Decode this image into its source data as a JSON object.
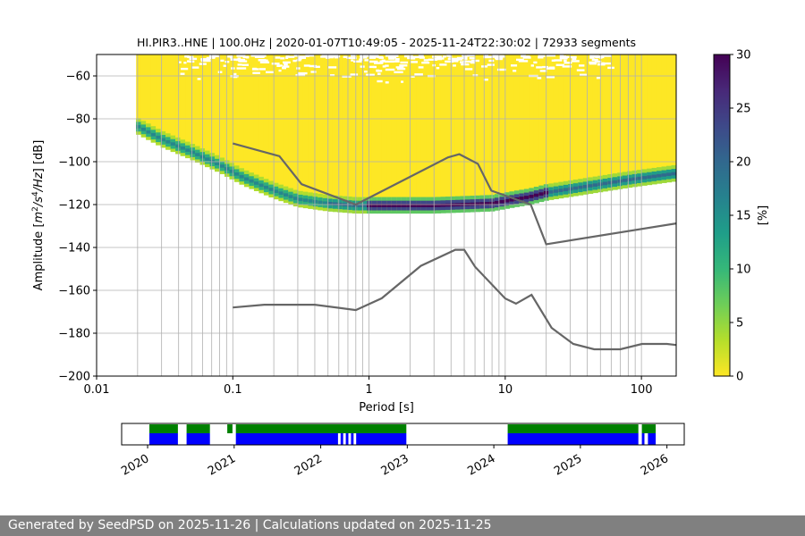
{
  "chart_data": [
    {
      "type": "heatmap",
      "title": "HI.PIR3..HNE | 100.0Hz | 2020-01-07T10:49:05 - 2025-11-24T22:30:02 | 72933 segments",
      "xlabel": "Period [s]",
      "ylabel_parts": [
        "Amplitude [",
        "m",
        "2",
        "/s",
        "4",
        "/Hz",
        "] [dB]"
      ],
      "x_scale": "log",
      "xlim": [
        0.01,
        180
      ],
      "ylim": [
        -200,
        -50
      ],
      "x_ticks": [
        0.01,
        0.1,
        1,
        10,
        100
      ],
      "x_tick_labels": [
        "0.01",
        "0.1",
        "1",
        "10",
        "100"
      ],
      "y_ticks": [
        -200,
        -180,
        -160,
        -140,
        -120,
        -100,
        -80,
        -60
      ],
      "y_tick_labels": [
        "−200",
        "−180",
        "−160",
        "−140",
        "−120",
        "−100",
        "−80",
        "−60"
      ],
      "grid": true,
      "psd_mode_curve": {
        "period": [
          0.02,
          0.03,
          0.05,
          0.08,
          0.12,
          0.2,
          0.3,
          0.5,
          0.8,
          1.5,
          3,
          5,
          8,
          12,
          15,
          20,
          40,
          80,
          180
        ],
        "db": [
          -84,
          -90,
          -96,
          -102,
          -108,
          -114,
          -118,
          -120,
          -121,
          -121,
          -121,
          -120.5,
          -120,
          -118,
          -117,
          -115,
          -112,
          -109,
          -106
        ]
      },
      "nhnm": {
        "period": [
          0.1,
          0.22,
          0.32,
          0.8,
          3.8,
          4.6,
          6.3,
          7.9,
          15.4,
          20,
          180
        ],
        "db": [
          -91.5,
          -97.4,
          -110.5,
          -120,
          -98,
          -96.5,
          -101,
          -113.5,
          -120,
          -138.5,
          -128.8
        ]
      },
      "nlnm": {
        "period": [
          0.1,
          0.17,
          0.4,
          0.8,
          1.24,
          2.4,
          4.3,
          5,
          6,
          10,
          12,
          15.6,
          21.9,
          31.6,
          45,
          70,
          101,
          154,
          180
        ],
        "db": [
          -168,
          -166.7,
          -166.7,
          -169.2,
          -163.7,
          -148.6,
          -141.1,
          -141.1,
          -149,
          -163.8,
          -166.2,
          -162.1,
          -177.5,
          -185,
          -187.5,
          -187.5,
          -185,
          -185,
          -185.5
        ]
      },
      "colorbar": {
        "label": "[%]",
        "range": [
          0,
          30
        ],
        "ticks": [
          0,
          5,
          10,
          15,
          20,
          25,
          30
        ],
        "colors": [
          "#fde725",
          "#b5de2b",
          "#6ece58",
          "#35b779",
          "#1f9e89",
          "#26828e",
          "#31688e",
          "#3e4989",
          "#482878",
          "#440154"
        ]
      }
    },
    {
      "type": "timeline",
      "x_ticks": [
        "2020",
        "2021",
        "2022",
        "2023",
        "2024",
        "2025",
        "2026"
      ],
      "xlim": [
        2019.7,
        2026.2
      ],
      "series": [
        {
          "color": "#008000",
          "spans": [
            [
              2020.02,
              2020.35
            ],
            [
              2020.45,
              2020.72
            ],
            [
              2020.92,
              2020.98
            ],
            [
              2021.02,
              2022.99
            ],
            [
              2024.16,
              2025.67
            ],
            [
              2025.71,
              2025.87
            ]
          ]
        },
        {
          "color": "#0000ff",
          "spans": [
            [
              2020.02,
              2020.35
            ],
            [
              2020.45,
              2020.72
            ],
            [
              2021.02,
              2022.2
            ],
            [
              2022.23,
              2022.26
            ],
            [
              2022.29,
              2022.32
            ],
            [
              2022.35,
              2022.38
            ],
            [
              2022.41,
              2022.99
            ],
            [
              2024.16,
              2025.67
            ],
            [
              2025.71,
              2025.74
            ],
            [
              2025.78,
              2025.87
            ]
          ]
        }
      ]
    }
  ],
  "footer": {
    "text": "Generated by SeedPSD on 2025-11-26 | Calculations updated on 2025-11-25"
  }
}
